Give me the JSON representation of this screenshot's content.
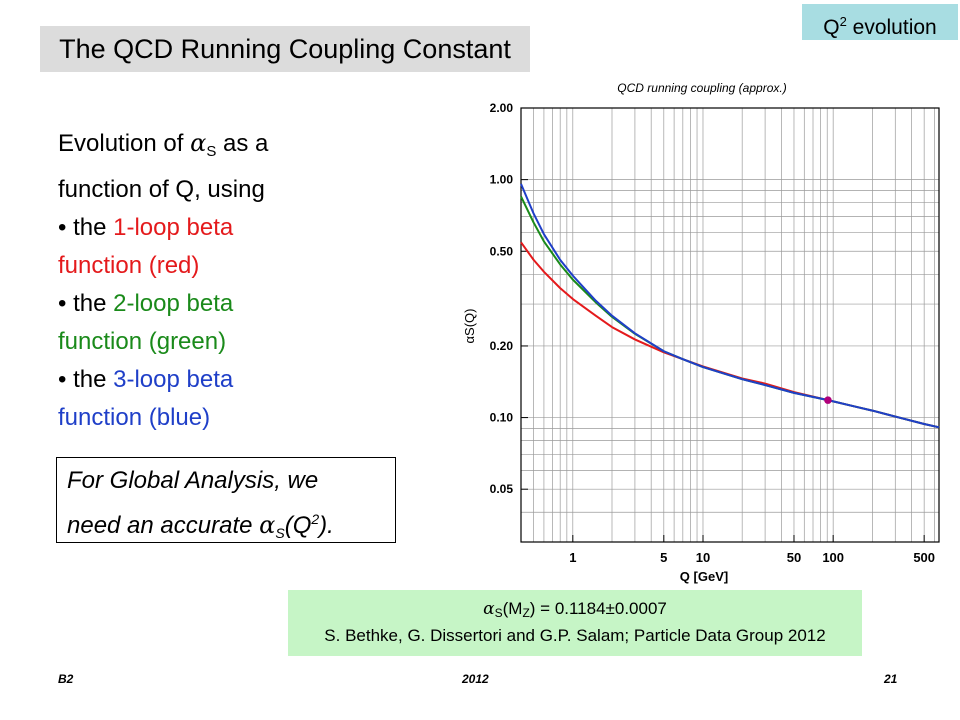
{
  "tag": {
    "text": "Q",
    "sup": "2",
    "tail": " evolution"
  },
  "slide_title": "The QCD Running Coupling Constant",
  "bullets": {
    "line1_pre": "Evolution of ",
    "alpha": "α",
    "alpha_sub": "S",
    "line1_post": " as a",
    "line2": "function of Q, using",
    "b1_pre": "• the ",
    "b1_colored": "1-loop beta",
    "b1_line2": "function (red)",
    "b2_pre": "• the ",
    "b2_colored": "2-loop beta",
    "b2_line2": "function (green)",
    "b3_pre": "• the ",
    "b3_colored": "3-loop beta",
    "b3_line2": "function (blue)"
  },
  "note": {
    "line1": "For Global Analysis, we",
    "line2_pre": "need an accurate ",
    "alpha": "α",
    "alpha_sub": "S",
    "paren_open": "(Q",
    "sup": "2",
    "paren_close": ")."
  },
  "reference": {
    "alpha": "α",
    "alpha_sub": "S",
    "paren_open": "(M",
    "mz_sub": "Z",
    "value": ") = 0.1184±0.0007",
    "citation": "S. Bethke, G. Dissertori and G.P. Salam; Particle Data Group 2012"
  },
  "footer": {
    "left": "B2",
    "center": "2012",
    "right": "21"
  },
  "chart_data": {
    "type": "line",
    "title": "QCD running coupling (approx.)",
    "xlabel": "Q [GeV]",
    "ylabel": "αS(Q)",
    "xscale": "log",
    "yscale": "log",
    "xlim": [
      0.4,
      650
    ],
    "ylim": [
      0.03,
      2.0
    ],
    "grid": true,
    "x_ticks": [
      {
        "value": 1,
        "label": "1"
      },
      {
        "value": 5,
        "label": "5"
      },
      {
        "value": 10,
        "label": "10"
      },
      {
        "value": 50,
        "label": "50"
      },
      {
        "value": 100,
        "label": "100"
      },
      {
        "value": 500,
        "label": "500"
      }
    ],
    "y_ticks": [
      {
        "value": 2.0,
        "label": "2.00"
      },
      {
        "value": 1.0,
        "label": "1.00"
      },
      {
        "value": 0.5,
        "label": "0.50"
      },
      {
        "value": 0.2,
        "label": "0.20"
      },
      {
        "value": 0.1,
        "label": "0.10"
      },
      {
        "value": 0.05,
        "label": "0.05"
      }
    ],
    "series": [
      {
        "color": "#e41a1c",
        "points": [
          [
            0.4,
            0.545
          ],
          [
            0.5,
            0.46
          ],
          [
            0.6,
            0.41
          ],
          [
            0.8,
            0.35
          ],
          [
            1,
            0.315
          ],
          [
            1.5,
            0.268
          ],
          [
            2,
            0.24
          ],
          [
            3,
            0.213
          ],
          [
            5,
            0.188
          ],
          [
            7,
            0.176
          ],
          [
            10,
            0.164
          ],
          [
            20,
            0.146
          ],
          [
            30,
            0.139
          ],
          [
            50,
            0.128
          ],
          [
            91.19,
            0.1184
          ],
          [
            150,
            0.111
          ],
          [
            200,
            0.107
          ],
          [
            300,
            0.101
          ],
          [
            500,
            0.094
          ],
          [
            650,
            0.091
          ]
        ]
      },
      {
        "color": "#1a8a1a",
        "points": [
          [
            0.4,
            0.85
          ],
          [
            0.5,
            0.66
          ],
          [
            0.6,
            0.55
          ],
          [
            0.8,
            0.44
          ],
          [
            1,
            0.38
          ],
          [
            1.5,
            0.305
          ],
          [
            2,
            0.265
          ],
          [
            3,
            0.225
          ],
          [
            5,
            0.19
          ],
          [
            7,
            0.176
          ],
          [
            10,
            0.163
          ],
          [
            20,
            0.145
          ],
          [
            30,
            0.137
          ],
          [
            50,
            0.127
          ],
          [
            91.19,
            0.1184
          ],
          [
            150,
            0.111
          ],
          [
            200,
            0.107
          ],
          [
            300,
            0.101
          ],
          [
            500,
            0.094
          ],
          [
            650,
            0.091
          ]
        ]
      },
      {
        "color": "#1f3fc8",
        "points": [
          [
            0.4,
            0.96
          ],
          [
            0.5,
            0.72
          ],
          [
            0.6,
            0.59
          ],
          [
            0.8,
            0.46
          ],
          [
            1,
            0.395
          ],
          [
            1.5,
            0.31
          ],
          [
            2,
            0.268
          ],
          [
            3,
            0.226
          ],
          [
            5,
            0.19
          ],
          [
            7,
            0.176
          ],
          [
            10,
            0.163
          ],
          [
            20,
            0.145
          ],
          [
            30,
            0.137
          ],
          [
            50,
            0.127
          ],
          [
            91.19,
            0.1184
          ],
          [
            150,
            0.111
          ],
          [
            200,
            0.107
          ],
          [
            300,
            0.101
          ],
          [
            500,
            0.094
          ],
          [
            650,
            0.091
          ]
        ]
      }
    ],
    "markers": [
      {
        "x": 91.19,
        "y": 0.1184,
        "color": "#b0007a"
      }
    ]
  }
}
